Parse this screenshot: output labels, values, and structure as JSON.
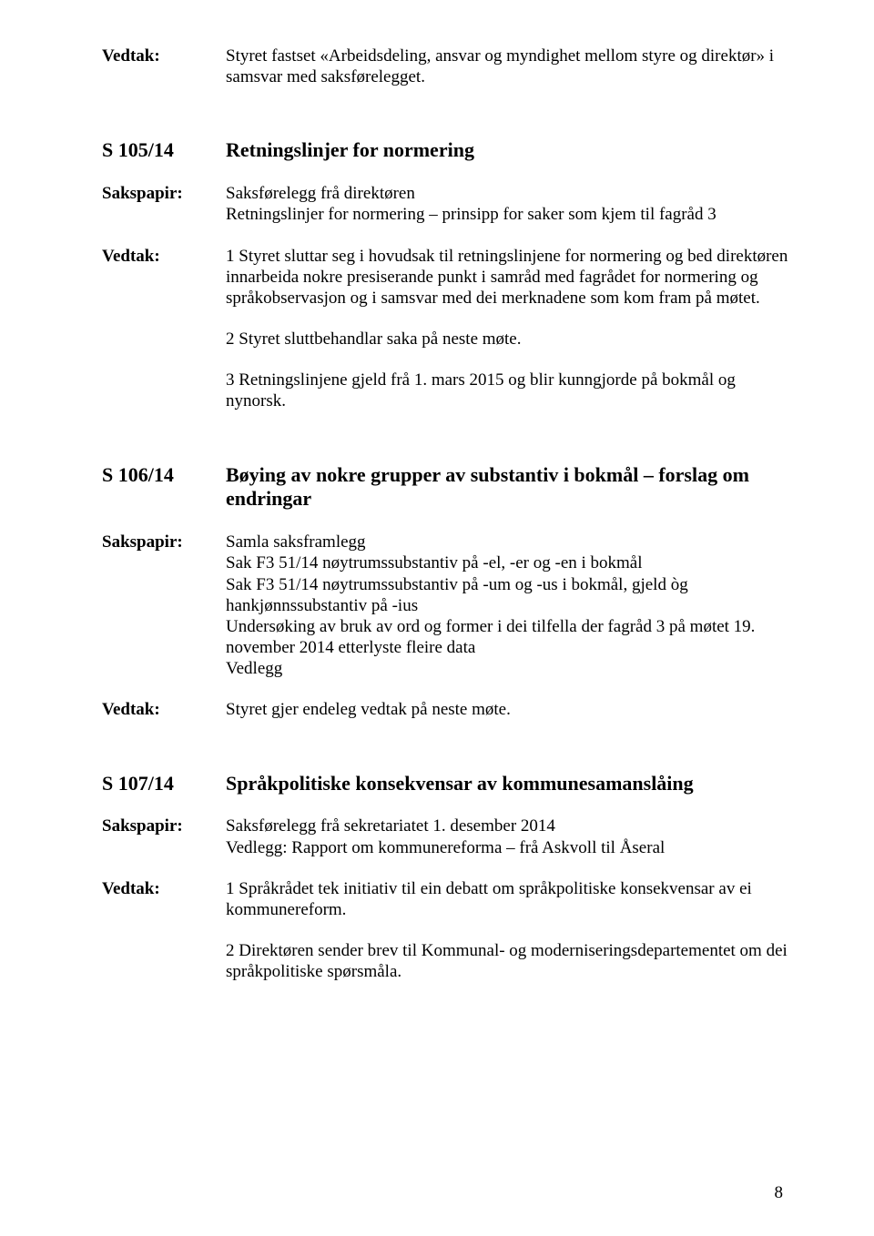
{
  "colors": {
    "text": "#000000",
    "background": "#ffffff"
  },
  "typography": {
    "family": "Times New Roman",
    "body_size": 19,
    "heading_size": 22
  },
  "pageNumber": "8",
  "block1": {
    "label": "Vedtak:",
    "text": "Styret fastset «Arbeidsdeling, ansvar og myndighet mellom styre og direktør» i samsvar med saksførelegget."
  },
  "s105": {
    "label": "S 105/14",
    "heading": "Retningslinjer for normering",
    "sakspapir_label": "Sakspapir:",
    "sakspapir_line1": "Saksførelegg frå direktøren",
    "sakspapir_line2": "Retningslinjer for normering – prinsipp for saker som kjem til fagråd 3",
    "vedtak_label": "Vedtak:",
    "vedtak_p1": "1 Styret sluttar seg i hovudsak til retningslinjene for normering og bed direktøren innarbeida nokre presiserande punkt i samråd med fagrådet for normering og språkobservasjon og i samsvar med dei merknadene som kom fram på møtet.",
    "vedtak_p2": "2 Styret sluttbehandlar saka på neste møte.",
    "vedtak_p3": "3 Retningslinjene gjeld frå 1. mars 2015 og blir kunngjorde på bokmål og nynorsk."
  },
  "s106": {
    "label": "S 106/14",
    "heading": "Bøying av nokre grupper av substantiv i bokmål – forslag om endringar",
    "sakspapir_label": "Sakspapir:",
    "sakspapir_l1": "Samla saksframlegg",
    "sakspapir_l2": "Sak F3 51/14 nøytrumssubstantiv på -el, -er og -en i bokmål",
    "sakspapir_l3": "Sak F3 51/14 nøytrumssubstantiv på -um og -us i bokmål, gjeld òg hankjønnssubstantiv på -ius",
    "sakspapir_l4": "Undersøking av bruk av ord og former i dei tilfella der fagråd 3 på møtet 19. november 2014 etterlyste fleire data",
    "sakspapir_l5": "Vedlegg",
    "vedtak_label": "Vedtak:",
    "vedtak_text": "Styret gjer endeleg vedtak på neste møte."
  },
  "s107": {
    "label": "S 107/14",
    "heading": "Språkpolitiske konsekvensar av kommunesamanslåing",
    "sakspapir_label": "Sakspapir:",
    "sakspapir_l1": "Saksførelegg frå sekretariatet 1. desember 2014",
    "sakspapir_l2": "Vedlegg: Rapport om kommunereforma – frå Askvoll til Åseral",
    "vedtak_label": "Vedtak:",
    "vedtak_p1": "1 Språkrådet tek initiativ til ein debatt om språkpolitiske konsekvensar av ei kommunereform.",
    "vedtak_p2": "2 Direktøren sender brev til Kommunal- og moderniseringsdepartementet om dei språkpolitiske spørsmåla."
  }
}
